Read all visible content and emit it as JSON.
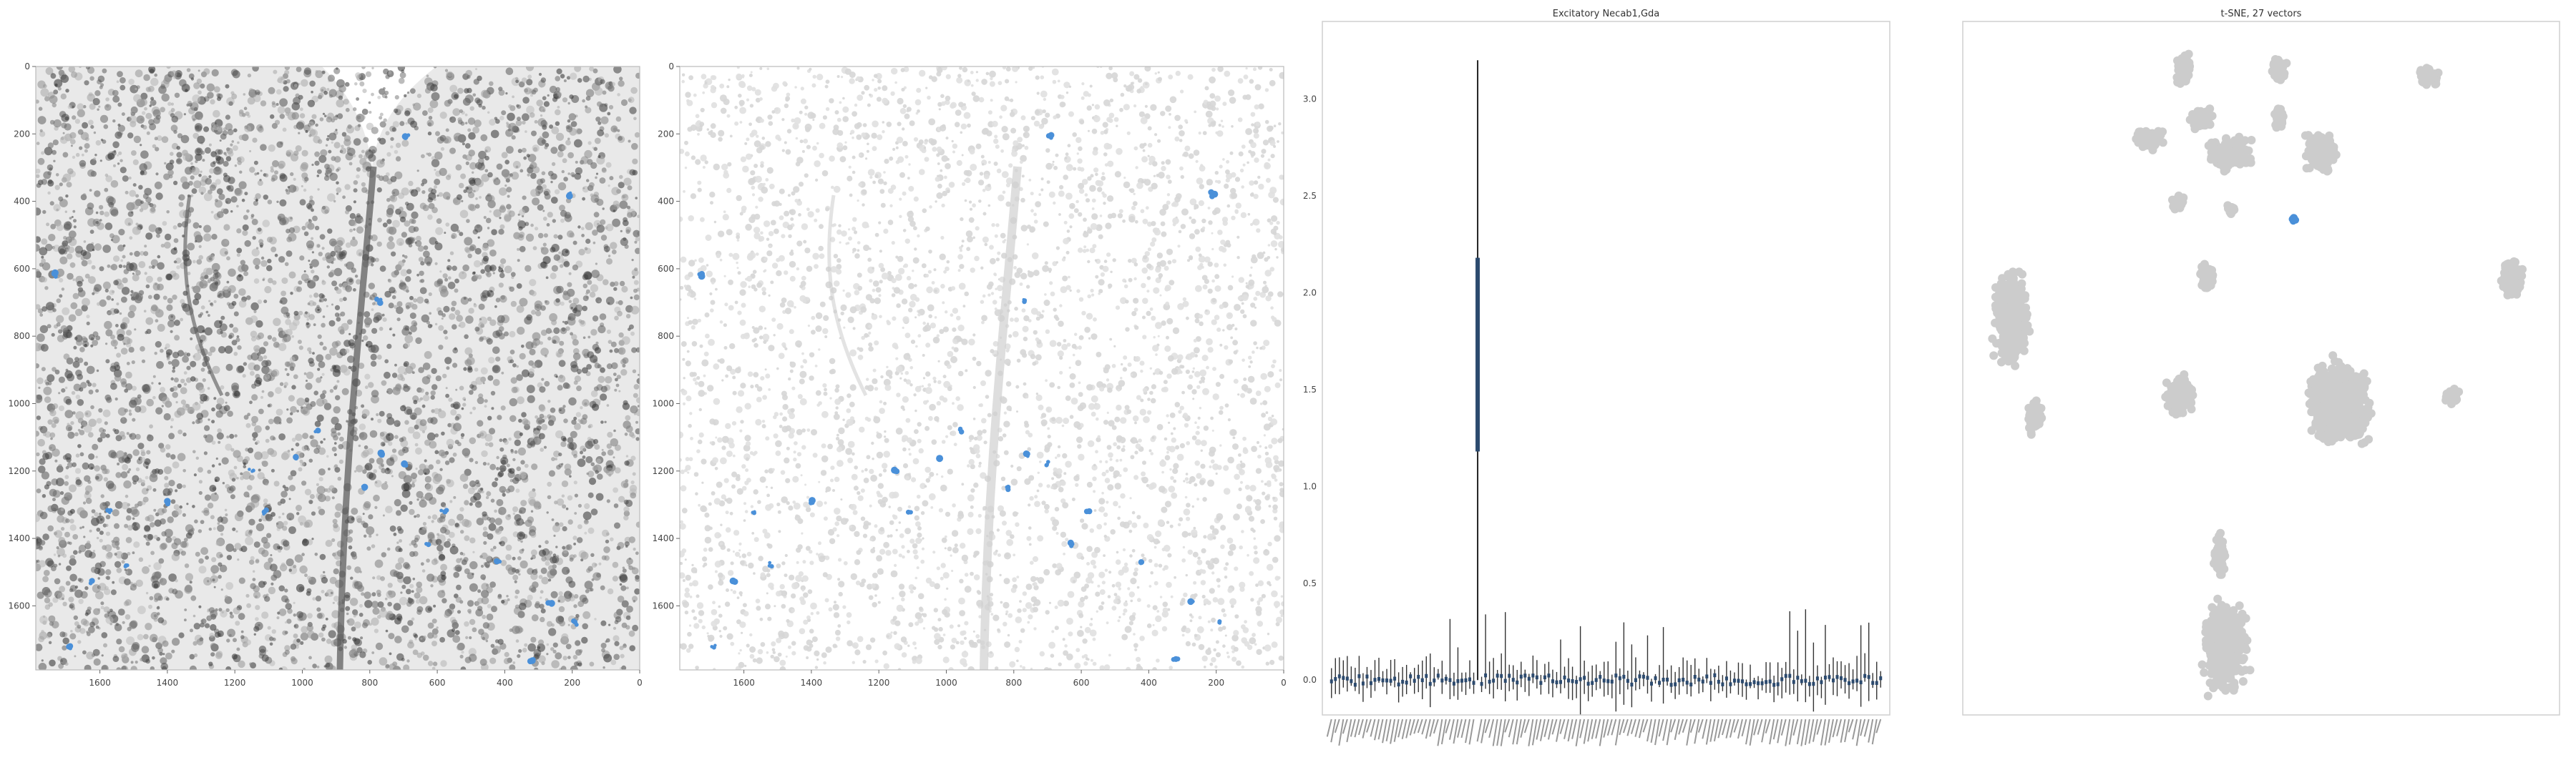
{
  "chart_data": [
    {
      "type": "image",
      "panel": "microscopy-grayscale",
      "title": "",
      "x_ticks": [
        "1600",
        "1400",
        "1200",
        "1000",
        "800",
        "600",
        "400",
        "200",
        "0"
      ],
      "x_tick_values": [
        1600,
        1400,
        1200,
        1000,
        800,
        600,
        400,
        200,
        0
      ],
      "y_ticks": [
        "0",
        "200",
        "400",
        "600",
        "800",
        "1000",
        "1200",
        "1400",
        "1600"
      ],
      "y_tick_values": [
        0,
        200,
        400,
        600,
        800,
        1000,
        1200,
        1400,
        1600
      ],
      "xlim": [
        1790,
        0
      ],
      "ylim": [
        1790,
        0
      ],
      "highlight_color": "#4a90d9"
    },
    {
      "type": "image",
      "panel": "segmentation-mask",
      "title": "",
      "x_ticks": [
        "1600",
        "1400",
        "1200",
        "1000",
        "800",
        "600",
        "400",
        "200",
        "0"
      ],
      "x_tick_values": [
        1600,
        1400,
        1200,
        1000,
        800,
        600,
        400,
        200,
        0
      ],
      "y_ticks": [
        "0",
        "200",
        "400",
        "600",
        "800",
        "1000",
        "1200",
        "1400",
        "1600"
      ],
      "y_tick_values": [
        0,
        200,
        400,
        600,
        800,
        1000,
        1200,
        1400,
        1600
      ],
      "xlim": [
        1790,
        0
      ],
      "ylim": [
        1790,
        0
      ],
      "highlight_color": "#4a90d9"
    },
    {
      "type": "bar",
      "panel": "gene-expression",
      "title": "Excitatory Necab1,Gda",
      "y_ticks": [
        "0.0",
        "0.5",
        "1.0",
        "1.5",
        "2.0",
        "2.5",
        "3.0"
      ],
      "y_tick_values": [
        0,
        0.5,
        1.0,
        1.5,
        2.0,
        2.5,
        3.0
      ],
      "ylim": [
        -0.18,
        3.4
      ],
      "n_genes": 140,
      "highlight_index": 37,
      "highlight_value": 3.2,
      "highlight_box": [
        1.18,
        2.18
      ],
      "bar_color": "#2c4a6e"
    },
    {
      "type": "scatter",
      "panel": "tsne",
      "title": "t-SNE, 27 vectors",
      "xlim": [
        0,
        1
      ],
      "ylim": [
        0,
        1
      ],
      "point_color": "#cccccc",
      "highlight_color": "#4a90d9"
    }
  ]
}
